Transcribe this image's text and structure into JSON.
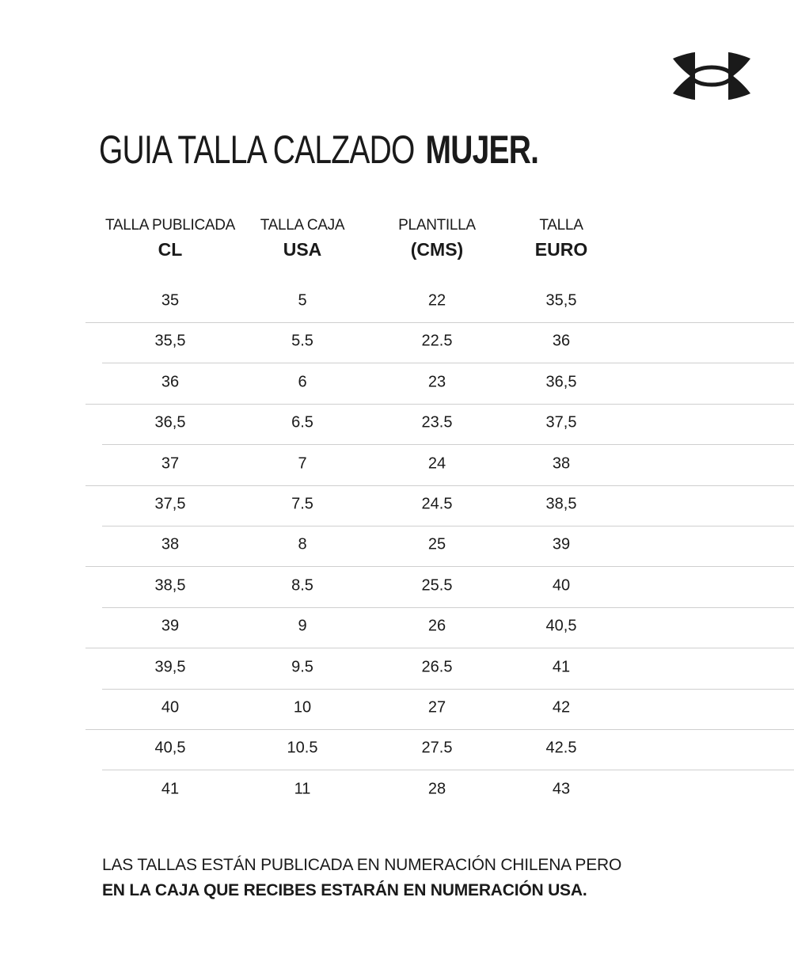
{
  "brand": {
    "logo": "under-armour-logo",
    "color": "#1a1a1a"
  },
  "title": {
    "light": "GUIA TALLA CALZADO",
    "bold": "MUJER."
  },
  "table": {
    "headers": [
      {
        "line1": "TALLA PUBLICADA",
        "line2": "CL"
      },
      {
        "line1": "TALLA CAJA",
        "line2": "USA"
      },
      {
        "line1": "PLANTILLA",
        "line2": "(CMS)"
      },
      {
        "line1": "TALLA",
        "line2": "EURO"
      }
    ],
    "rows": [
      [
        "35",
        "5",
        "22",
        "35,5"
      ],
      [
        "35,5",
        "5.5",
        "22.5",
        "36"
      ],
      [
        "36",
        "6",
        "23",
        "36,5"
      ],
      [
        "36,5",
        "6.5",
        "23.5",
        "37,5"
      ],
      [
        "37",
        "7",
        "24",
        "38"
      ],
      [
        "37,5",
        "7.5",
        "24.5",
        "38,5"
      ],
      [
        "38",
        "8",
        "25",
        "39"
      ],
      [
        "38,5",
        "8.5",
        "25.5",
        "40"
      ],
      [
        "39",
        "9",
        "26",
        "40,5"
      ],
      [
        "39,5",
        "9.5",
        "26.5",
        "41"
      ],
      [
        "40",
        "10",
        "27",
        "42"
      ],
      [
        "40,5",
        "10.5",
        "27.5",
        "42.5"
      ],
      [
        "41",
        "11",
        "28",
        "43"
      ]
    ]
  },
  "note": {
    "line1": "LAS TALLAS ESTÁN PUBLICADA EN NUMERACIÓN CHILENA PERO",
    "line2": "EN LA CAJA QUE RECIBES ESTARÁN EN NUMERACIÓN USA."
  }
}
